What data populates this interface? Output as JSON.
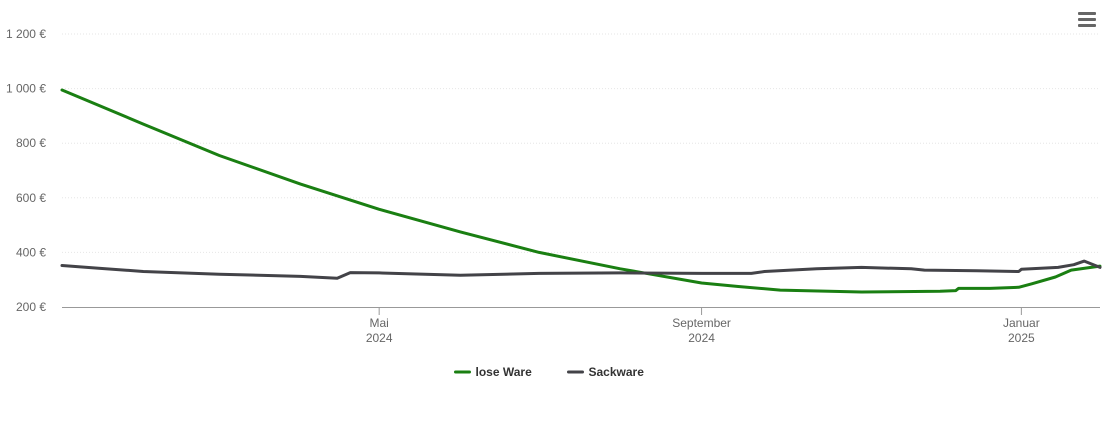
{
  "chart_data": {
    "type": "line",
    "y_axis": {
      "min": 200,
      "max": 1200,
      "ticks": [
        "200 €",
        "400 €",
        "600 €",
        "800 €",
        "1 000 €",
        "1 200 €"
      ],
      "tick_values": [
        200,
        400,
        600,
        800,
        1000,
        1200
      ]
    },
    "x_axis": {
      "range": [
        "2024-01-01",
        "2025-01-31"
      ],
      "ticks": [
        {
          "date": "2024-05-01",
          "line1": "Mai",
          "line2": "2024"
        },
        {
          "date": "2024-09-01",
          "line1": "September",
          "line2": "2024"
        },
        {
          "date": "2025-01-01",
          "line1": "Januar",
          "line2": "2025"
        }
      ]
    },
    "grid": "horizontal",
    "legend_position": "bottom-center",
    "series": [
      {
        "name": "lose Ware",
        "color": "#1a7f12",
        "points": [
          [
            "2024-01-01",
            995
          ],
          [
            "2024-02-01",
            870
          ],
          [
            "2024-03-01",
            755
          ],
          [
            "2024-04-01",
            650
          ],
          [
            "2024-05-01",
            558
          ],
          [
            "2024-06-01",
            475
          ],
          [
            "2024-07-01",
            400
          ],
          [
            "2024-08-01",
            340
          ],
          [
            "2024-09-01",
            288
          ],
          [
            "2024-09-15",
            275
          ],
          [
            "2024-10-01",
            262
          ],
          [
            "2024-11-01",
            255
          ],
          [
            "2024-12-01",
            258
          ],
          [
            "2024-12-07",
            260
          ],
          [
            "2024-12-08",
            268
          ],
          [
            "2024-12-20",
            268
          ],
          [
            "2024-12-31",
            272
          ],
          [
            "2025-01-05",
            285
          ],
          [
            "2025-01-14",
            310
          ],
          [
            "2025-01-20",
            335
          ],
          [
            "2025-01-31",
            350
          ]
        ]
      },
      {
        "name": "Sackware",
        "color": "#434348",
        "points": [
          [
            "2024-01-01",
            352
          ],
          [
            "2024-01-15",
            342
          ],
          [
            "2024-02-01",
            330
          ],
          [
            "2024-03-01",
            320
          ],
          [
            "2024-04-01",
            312
          ],
          [
            "2024-04-15",
            305
          ],
          [
            "2024-04-20",
            326
          ],
          [
            "2024-05-01",
            325
          ],
          [
            "2024-06-01",
            316
          ],
          [
            "2024-07-01",
            323
          ],
          [
            "2024-08-01",
            325
          ],
          [
            "2024-09-01",
            323
          ],
          [
            "2024-09-20",
            323
          ],
          [
            "2024-09-25",
            330
          ],
          [
            "2024-10-15",
            340
          ],
          [
            "2024-11-01",
            345
          ],
          [
            "2024-11-20",
            340
          ],
          [
            "2024-11-25",
            335
          ],
          [
            "2024-12-15",
            333
          ],
          [
            "2024-12-31",
            330
          ],
          [
            "2025-01-01",
            338
          ],
          [
            "2025-01-15",
            345
          ],
          [
            "2025-01-21",
            355
          ],
          [
            "2025-01-25",
            368
          ],
          [
            "2025-01-31",
            345
          ]
        ]
      }
    ]
  },
  "menu_icon": "hamburger-menu-icon"
}
